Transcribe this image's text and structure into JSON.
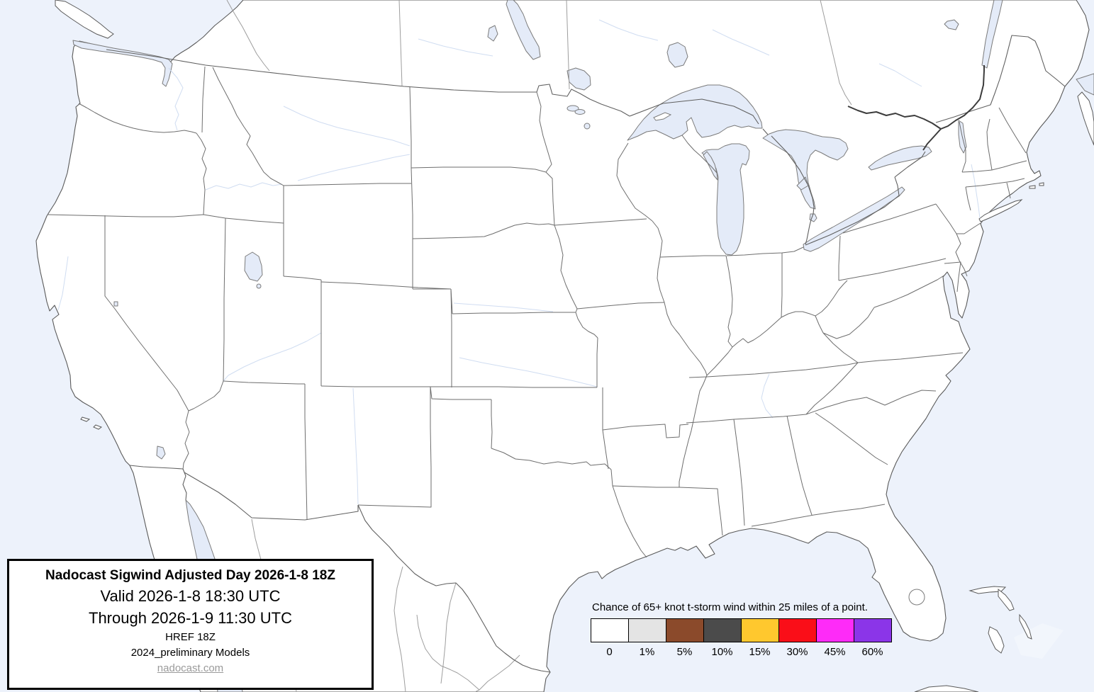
{
  "title_box": {
    "title": "Nadocast Sigwind Adjusted Day 2026-1-8 18Z",
    "valid_line": "Valid 2026-1-8 18:30 UTC",
    "through_line": "Through 2026-1-9 11:30 UTC",
    "model_line": "HREF 18Z",
    "models_note": "2024_preliminary Models",
    "site_link": "nadocast.com"
  },
  "legend": {
    "title": "Chance of 65+ knot t-storm wind within 25 miles of a point.",
    "entries": [
      {
        "label": "0",
        "color": "#FFFFFF"
      },
      {
        "label": "1%",
        "color": "#E4E4E4"
      },
      {
        "label": "5%",
        "color": "#8B4A2B"
      },
      {
        "label": "10%",
        "color": "#4B4B4B"
      },
      {
        "label": "15%",
        "color": "#FFC82E"
      },
      {
        "label": "30%",
        "color": "#FA0E18"
      },
      {
        "label": "45%",
        "color": "#FE2BF8"
      },
      {
        "label": "60%",
        "color": "#8B35E8"
      }
    ]
  },
  "map": {
    "region": "Continental United States with southern Canada and northern Mexico",
    "colors": {
      "ocean": "#EDF2FB",
      "land": "#FFFFFF",
      "lake_fill": "#E4EBF8",
      "coastline": "#5A5A5A",
      "state_border": "#6E6E6E",
      "foreign_border": "#9D9D9D",
      "river": "#CBD9F0",
      "major_river": "#3C3C3C"
    }
  }
}
